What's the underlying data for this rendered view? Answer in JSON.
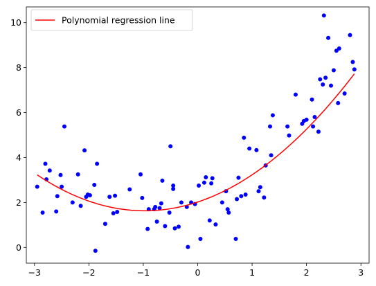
{
  "chart_data": {
    "type": "scatter",
    "xlim": [
      -3.15,
      3.15
    ],
    "ylim": [
      -0.7,
      10.7
    ],
    "x_ticks": [
      -3,
      -2,
      -1,
      0,
      1,
      2,
      3
    ],
    "y_ticks": [
      0,
      2,
      4,
      6,
      8,
      10
    ],
    "grid": false,
    "legend_position": "top-left",
    "points_color": "#0000ff",
    "line_color": "#ff0000",
    "regression": {
      "name": "Polynomial regression line",
      "coefficients": [
        2.02,
        0.8,
        0.41
      ],
      "x_range": [
        -2.95,
        2.88
      ]
    },
    "points": [
      [
        -2.95,
        2.7
      ],
      [
        -2.85,
        1.55
      ],
      [
        -2.8,
        3.72
      ],
      [
        -2.78,
        3.03
      ],
      [
        -2.72,
        3.42
      ],
      [
        -2.6,
        1.6
      ],
      [
        -2.58,
        2.28
      ],
      [
        -2.52,
        3.22
      ],
      [
        -2.5,
        2.7
      ],
      [
        -2.45,
        5.38
      ],
      [
        -2.3,
        2.0
      ],
      [
        -2.2,
        3.25
      ],
      [
        -2.15,
        1.85
      ],
      [
        -2.08,
        4.32
      ],
      [
        -2.05,
        2.25
      ],
      [
        -2.02,
        2.35
      ],
      [
        -1.98,
        2.32
      ],
      [
        -1.9,
        2.78
      ],
      [
        -1.88,
        -0.15
      ],
      [
        -1.85,
        3.72
      ],
      [
        -1.7,
        1.05
      ],
      [
        -1.62,
        2.25
      ],
      [
        -1.55,
        1.52
      ],
      [
        -1.52,
        2.3
      ],
      [
        -1.48,
        1.58
      ],
      [
        -1.25,
        2.58
      ],
      [
        -1.05,
        3.25
      ],
      [
        -1.02,
        2.2
      ],
      [
        -0.92,
        0.82
      ],
      [
        -0.9,
        1.7
      ],
      [
        -0.8,
        1.7
      ],
      [
        -0.78,
        1.8
      ],
      [
        -0.75,
        1.15
      ],
      [
        -0.7,
        1.75
      ],
      [
        -0.67,
        1.96
      ],
      [
        -0.65,
        2.97
      ],
      [
        -0.6,
        0.95
      ],
      [
        -0.52,
        1.55
      ],
      [
        -0.5,
        4.5
      ],
      [
        -0.45,
        2.6
      ],
      [
        -0.45,
        2.75
      ],
      [
        -0.42,
        0.85
      ],
      [
        -0.35,
        0.92
      ],
      [
        -0.3,
        2.0
      ],
      [
        -0.2,
        1.8
      ],
      [
        -0.18,
        0.02
      ],
      [
        -0.12,
        2.0
      ],
      [
        -0.05,
        1.93
      ],
      [
        0.02,
        2.75
      ],
      [
        0.05,
        0.38
      ],
      [
        0.12,
        2.88
      ],
      [
        0.15,
        3.12
      ],
      [
        0.22,
        1.2
      ],
      [
        0.25,
        2.85
      ],
      [
        0.27,
        3.08
      ],
      [
        0.33,
        1.02
      ],
      [
        0.45,
        2.0
      ],
      [
        0.52,
        2.5
      ],
      [
        0.55,
        1.7
      ],
      [
        0.57,
        1.55
      ],
      [
        0.7,
        0.38
      ],
      [
        0.72,
        2.15
      ],
      [
        0.75,
        3.1
      ],
      [
        0.8,
        2.28
      ],
      [
        0.85,
        4.88
      ],
      [
        0.88,
        2.35
      ],
      [
        0.95,
        4.4
      ],
      [
        1.08,
        4.33
      ],
      [
        1.12,
        2.5
      ],
      [
        1.15,
        2.68
      ],
      [
        1.22,
        2.22
      ],
      [
        1.25,
        3.65
      ],
      [
        1.33,
        5.38
      ],
      [
        1.35,
        4.1
      ],
      [
        1.38,
        5.88
      ],
      [
        1.65,
        5.38
      ],
      [
        1.68,
        4.98
      ],
      [
        1.8,
        6.8
      ],
      [
        1.92,
        5.5
      ],
      [
        1.95,
        5.62
      ],
      [
        2.0,
        5.68
      ],
      [
        2.1,
        6.58
      ],
      [
        2.12,
        5.38
      ],
      [
        2.15,
        5.8
      ],
      [
        2.22,
        5.15
      ],
      [
        2.25,
        7.48
      ],
      [
        2.3,
        7.25
      ],
      [
        2.32,
        10.32
      ],
      [
        2.35,
        7.55
      ],
      [
        2.4,
        9.32
      ],
      [
        2.45,
        7.2
      ],
      [
        2.5,
        7.88
      ],
      [
        2.55,
        8.75
      ],
      [
        2.58,
        6.42
      ],
      [
        2.6,
        8.85
      ],
      [
        2.7,
        6.85
      ],
      [
        2.8,
        9.45
      ],
      [
        2.85,
        8.25
      ],
      [
        2.88,
        7.92
      ]
    ]
  }
}
